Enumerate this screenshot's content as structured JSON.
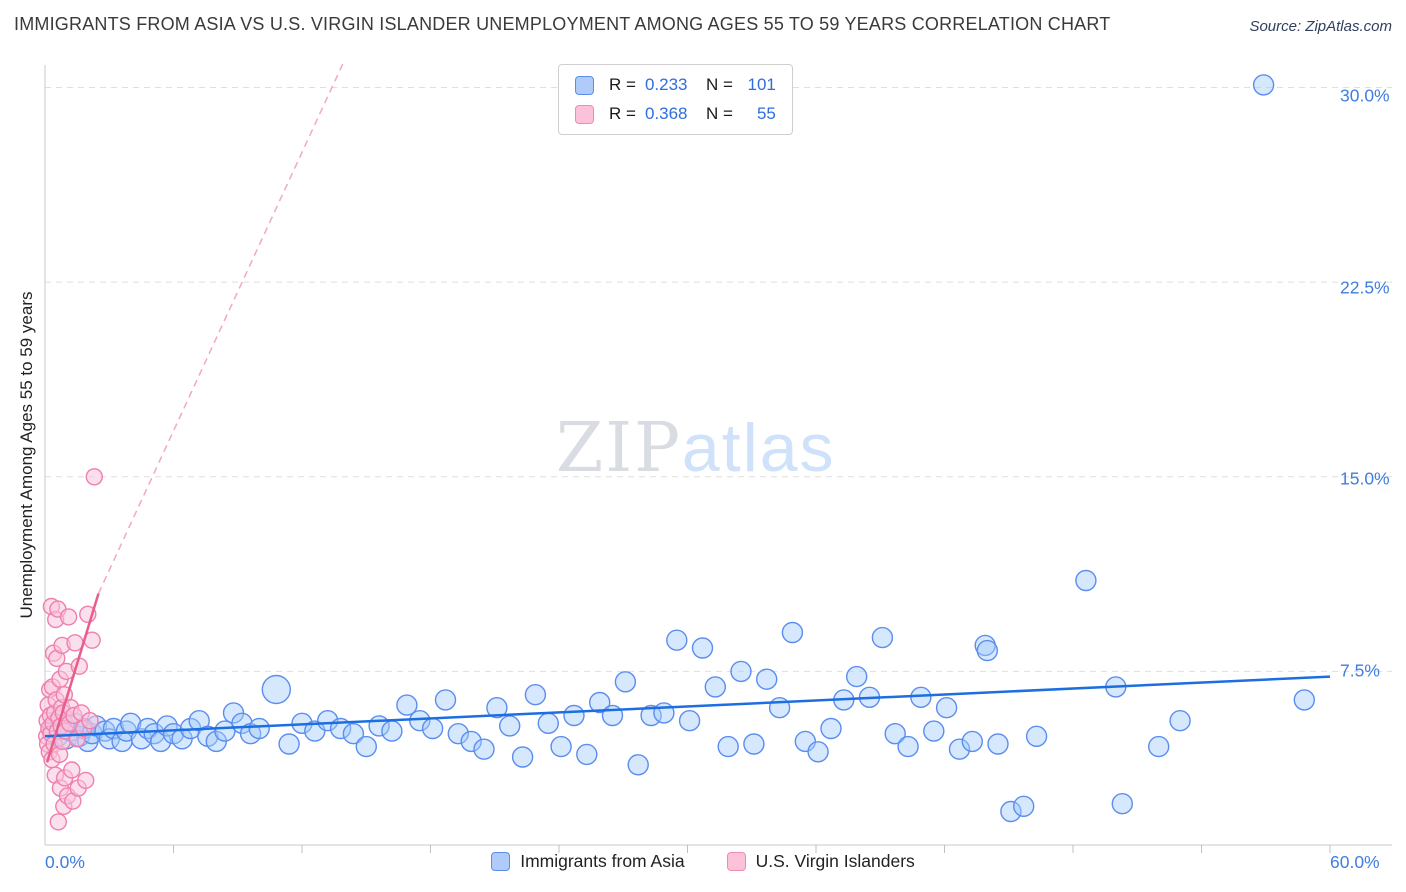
{
  "header": {
    "title": "IMMIGRANTS FROM ASIA VS U.S. VIRGIN ISLANDER UNEMPLOYMENT AMONG AGES 55 TO 59 YEARS CORRELATION CHART",
    "source": "Source: ZipAtlas.com"
  },
  "watermark": {
    "part1": "ZIP",
    "part2": "atlas"
  },
  "correlation_legend": {
    "rows": [
      {
        "series": "Immigrants from Asia",
        "r_label": "R =",
        "r_value": "0.233",
        "n_label": "N =",
        "n_value": "101",
        "swatch_fill": "#aecbfa",
        "swatch_border": "#5b8def"
      },
      {
        "series": "U.S. Virgin Islanders",
        "r_label": "R =",
        "r_value": "0.368",
        "n_label": "N =",
        "n_value": "55",
        "swatch_fill": "#fbc2da",
        "swatch_border": "#f08ab0"
      }
    ]
  },
  "series_legend": [
    {
      "label": "Immigrants from Asia",
      "swatch_fill": "#aecbfa",
      "swatch_border": "#5b8def"
    },
    {
      "label": "U.S. Virgin Islanders",
      "swatch_fill": "#fbc2da",
      "swatch_border": "#f08ab0"
    }
  ],
  "axes": {
    "y_label": "Unemployment Among Ages 55 to 59 years",
    "y_tick_labels": [
      "30.0%",
      "22.5%",
      "15.0%",
      "7.5%"
    ],
    "y_tick_values": [
      30,
      22.5,
      15,
      7.5
    ],
    "x_min_label": "0.0%",
    "x_max_label": "60.0%",
    "x_tick_step": 6
  },
  "chart_data": {
    "type": "scatter",
    "title": "IMMIGRANTS FROM ASIA VS U.S. VIRGIN ISLANDER UNEMPLOYMENT AMONG AGES 55 TO 59 YEARS CORRELATION CHART",
    "xlabel": "",
    "ylabel": "Unemployment Among Ages 55 to 59 years",
    "x_range": [
      0,
      60
    ],
    "y_range": [
      0,
      31
    ],
    "x_unit": "%",
    "y_unit": "%",
    "grid": "horizontal-dashed",
    "legend_position": "bottom",
    "series": [
      {
        "name": "Immigrants from Asia",
        "r": 0.233,
        "n": 101,
        "point_fill": "rgba(164,203,250,0.45)",
        "point_stroke": "#5b8def",
        "radius": 10,
        "points": [
          [
            0.4,
            5.3
          ],
          [
            0.6,
            5.0
          ],
          [
            0.8,
            5.6
          ],
          [
            1.0,
            4.9
          ],
          [
            1.2,
            5.2
          ],
          [
            1.4,
            5.5
          ],
          [
            1.6,
            5.0
          ],
          [
            1.8,
            5.3
          ],
          [
            2.0,
            4.8
          ],
          [
            2.2,
            5.1
          ],
          [
            2.4,
            5.4
          ],
          [
            2.8,
            5.2
          ],
          [
            3.0,
            4.9
          ],
          [
            3.2,
            5.3
          ],
          [
            3.6,
            4.8
          ],
          [
            3.8,
            5.2
          ],
          [
            4.0,
            5.5
          ],
          [
            4.5,
            4.9
          ],
          [
            4.8,
            5.3
          ],
          [
            5.1,
            5.1
          ],
          [
            5.4,
            4.8
          ],
          [
            5.7,
            5.4
          ],
          [
            6.0,
            5.1
          ],
          [
            6.4,
            4.9
          ],
          [
            6.8,
            5.3
          ],
          [
            7.2,
            5.6
          ],
          [
            7.6,
            5.0
          ],
          [
            8.0,
            4.8
          ],
          [
            8.4,
            5.2
          ],
          [
            8.8,
            5.9
          ],
          [
            9.2,
            5.5
          ],
          [
            9.6,
            5.1
          ],
          [
            10.0,
            5.3
          ],
          [
            10.8,
            6.8,
            14
          ],
          [
            11.4,
            4.7
          ],
          [
            12.0,
            5.5
          ],
          [
            12.6,
            5.2
          ],
          [
            13.2,
            5.6
          ],
          [
            13.8,
            5.3
          ],
          [
            14.4,
            5.1
          ],
          [
            15.0,
            4.6
          ],
          [
            15.6,
            5.4
          ],
          [
            16.2,
            5.2
          ],
          [
            16.9,
            6.2
          ],
          [
            17.5,
            5.6
          ],
          [
            18.1,
            5.3
          ],
          [
            18.7,
            6.4
          ],
          [
            19.3,
            5.1
          ],
          [
            19.9,
            4.8
          ],
          [
            20.5,
            4.5
          ],
          [
            21.1,
            6.1
          ],
          [
            21.7,
            5.4
          ],
          [
            22.3,
            4.2
          ],
          [
            22.9,
            6.6
          ],
          [
            23.5,
            5.5
          ],
          [
            24.1,
            4.6
          ],
          [
            24.7,
            5.8
          ],
          [
            25.3,
            4.3
          ],
          [
            25.9,
            6.3
          ],
          [
            26.5,
            5.8
          ],
          [
            27.1,
            7.1
          ],
          [
            27.7,
            3.9
          ],
          [
            28.3,
            5.8
          ],
          [
            28.9,
            5.9
          ],
          [
            29.5,
            8.7
          ],
          [
            30.1,
            5.6
          ],
          [
            30.7,
            8.4
          ],
          [
            31.3,
            6.9
          ],
          [
            31.9,
            4.6
          ],
          [
            32.5,
            7.5
          ],
          [
            33.1,
            4.7
          ],
          [
            33.7,
            7.2
          ],
          [
            34.3,
            6.1
          ],
          [
            34.9,
            9.0
          ],
          [
            35.5,
            4.8
          ],
          [
            36.1,
            4.4
          ],
          [
            36.7,
            5.3
          ],
          [
            37.3,
            6.4
          ],
          [
            37.9,
            7.3
          ],
          [
            38.5,
            6.5
          ],
          [
            39.1,
            8.8
          ],
          [
            39.7,
            5.1
          ],
          [
            40.3,
            4.6
          ],
          [
            40.9,
            6.5
          ],
          [
            41.5,
            5.2
          ],
          [
            42.1,
            6.1
          ],
          [
            42.7,
            4.5
          ],
          [
            43.3,
            4.8
          ],
          [
            43.9,
            8.5
          ],
          [
            44.5,
            4.7
          ],
          [
            45.1,
            2.1
          ],
          [
            45.7,
            2.3
          ],
          [
            46.3,
            5.0
          ],
          [
            48.6,
            11.0
          ],
          [
            50.0,
            6.9
          ],
          [
            50.3,
            2.4
          ],
          [
            52.0,
            4.6
          ],
          [
            53.0,
            5.6
          ],
          [
            56.9,
            30.1
          ],
          [
            58.8,
            6.4
          ],
          [
            44.0,
            8.3
          ]
        ],
        "trend_lines": [
          {
            "x1": 0,
            "y1": 5.0,
            "x2": 60,
            "y2": 7.3,
            "color": "#1d6ee0",
            "width": 2.5
          }
        ]
      },
      {
        "name": "U.S. Virgin Islanders",
        "r": 0.368,
        "n": 55,
        "point_fill": "rgba(250,196,220,0.55)",
        "point_stroke": "#ef7fae",
        "radius": 8,
        "points": [
          [
            0.08,
            5.0
          ],
          [
            0.1,
            5.6
          ],
          [
            0.12,
            4.7
          ],
          [
            0.15,
            6.2
          ],
          [
            0.18,
            5.3
          ],
          [
            0.2,
            4.4
          ],
          [
            0.22,
            6.8
          ],
          [
            0.25,
            5.8
          ],
          [
            0.28,
            5.1
          ],
          [
            0.3,
            10.0
          ],
          [
            0.32,
            4.1
          ],
          [
            0.35,
            6.9
          ],
          [
            0.38,
            5.5
          ],
          [
            0.4,
            8.2
          ],
          [
            0.42,
            4.7
          ],
          [
            0.45,
            5.9
          ],
          [
            0.48,
            3.5
          ],
          [
            0.5,
            9.5
          ],
          [
            0.52,
            6.4
          ],
          [
            0.55,
            8.0
          ],
          [
            0.58,
            5.2
          ],
          [
            0.6,
            9.9
          ],
          [
            0.62,
            1.7
          ],
          [
            0.65,
            5.7
          ],
          [
            0.68,
            4.3
          ],
          [
            0.7,
            7.2
          ],
          [
            0.72,
            3.0
          ],
          [
            0.75,
            5.4
          ],
          [
            0.78,
            6.1
          ],
          [
            0.8,
            8.5
          ],
          [
            0.82,
            4.8
          ],
          [
            0.85,
            5.9
          ],
          [
            0.88,
            2.3
          ],
          [
            0.9,
            6.6
          ],
          [
            0.92,
            3.4
          ],
          [
            0.95,
            5.2
          ],
          [
            1.0,
            7.5
          ],
          [
            1.05,
            2.7
          ],
          [
            1.1,
            9.6
          ],
          [
            1.15,
            5.5
          ],
          [
            1.2,
            6.1
          ],
          [
            1.25,
            3.7
          ],
          [
            1.3,
            2.5
          ],
          [
            1.35,
            5.8
          ],
          [
            1.4,
            8.6
          ],
          [
            1.5,
            4.9
          ],
          [
            1.55,
            3.0
          ],
          [
            1.6,
            7.7
          ],
          [
            1.7,
            5.9
          ],
          [
            1.8,
            5.3
          ],
          [
            1.9,
            3.3
          ],
          [
            2.0,
            9.7
          ],
          [
            2.1,
            5.6
          ],
          [
            2.2,
            8.7
          ],
          [
            2.3,
            15.0
          ]
        ],
        "trend_lines": [
          {
            "x1": 0.1,
            "y1": 4.0,
            "x2": 2.5,
            "y2": 10.5,
            "color": "#e85d8a",
            "width": 2.5
          },
          {
            "x1": 2.5,
            "y1": 10.5,
            "x2": 13.9,
            "y2": 30.9,
            "color": "#f3a8c0",
            "width": 1.5,
            "dash": "7,5"
          }
        ]
      }
    ]
  }
}
